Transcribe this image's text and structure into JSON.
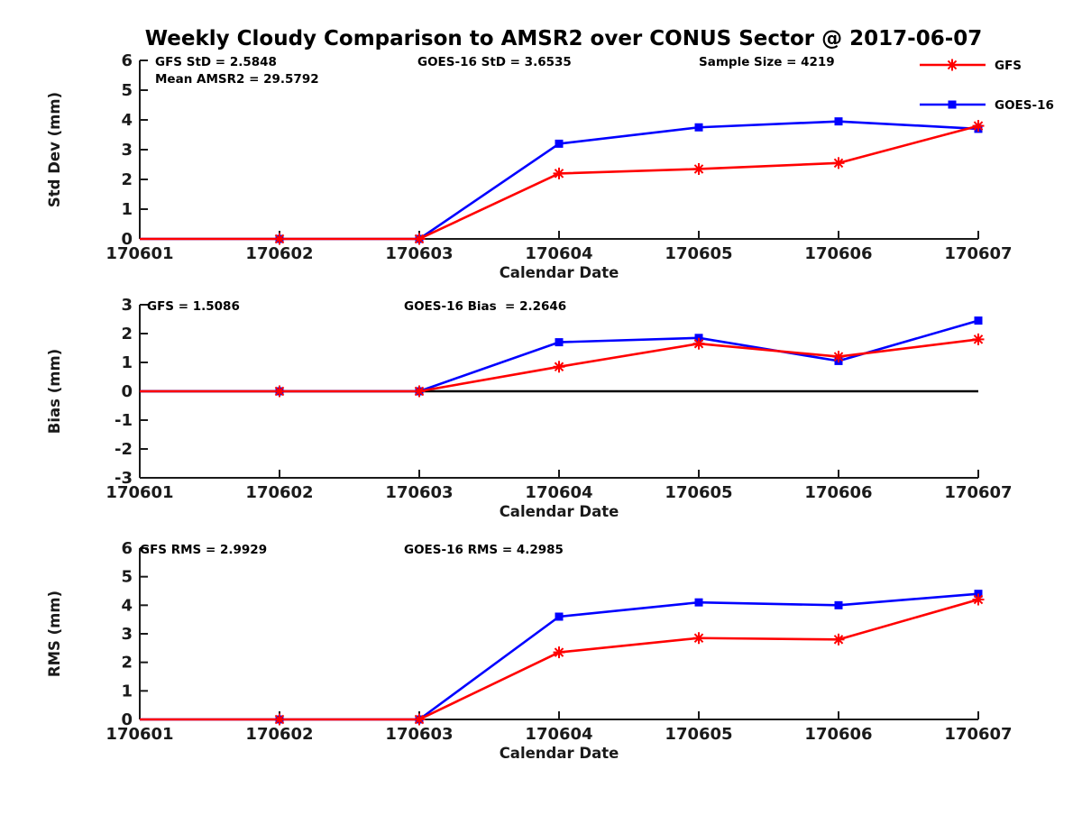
{
  "title": "Weekly Cloudy Comparison to AMSR2 over CONUS Sector @ 2017-06-07",
  "axis_color": "#1a1a1a",
  "legend": {
    "entries": [
      {
        "label": "GFS",
        "color": "#ff0000",
        "marker": "asterisk"
      },
      {
        "label": "GOES-16",
        "color": "#0000ff",
        "marker": "square"
      }
    ]
  },
  "chart_data": [
    {
      "type": "line",
      "name": "std-dev",
      "x": [
        "170601",
        "170602",
        "170603",
        "170604",
        "170605",
        "170606",
        "170607"
      ],
      "xlabel": "Calendar Date",
      "ylabel": "Std Dev (mm)",
      "ylim": [
        0,
        6
      ],
      "yticks": [
        0,
        1,
        2,
        3,
        4,
        5,
        6
      ],
      "zero_line": false,
      "series": [
        {
          "name": "GFS",
          "color": "#ff0000",
          "marker": "asterisk",
          "values": [
            0,
            0,
            0,
            2.2,
            2.35,
            2.55,
            3.8
          ]
        },
        {
          "name": "GOES-16",
          "color": "#0000ff",
          "marker": "square",
          "values": [
            0,
            0,
            0,
            3.2,
            3.75,
            3.95,
            3.7
          ]
        }
      ],
      "annotations": [
        {
          "text": "GFS StD = 2.5848",
          "x": 172,
          "y": 73
        },
        {
          "text": "Mean AMSR2 = 29.5792",
          "x": 172,
          "y": 92
        },
        {
          "text": "GOES-16 StD = 3.6535",
          "x": 463,
          "y": 73
        },
        {
          "text": "Sample Size = 4219",
          "x": 775,
          "y": 73
        }
      ]
    },
    {
      "type": "line",
      "name": "bias",
      "x": [
        "170601",
        "170602",
        "170603",
        "170604",
        "170605",
        "170606",
        "170607"
      ],
      "xlabel": "Calendar Date",
      "ylabel": "Bias (mm)",
      "ylim": [
        -3,
        3
      ],
      "yticks": [
        -3,
        -2,
        -1,
        0,
        1,
        2,
        3
      ],
      "zero_line": true,
      "series": [
        {
          "name": "GFS",
          "color": "#ff0000",
          "marker": "asterisk",
          "values": [
            0,
            0,
            0,
            0.85,
            1.65,
            1.2,
            1.8
          ]
        },
        {
          "name": "GOES-16",
          "color": "#0000ff",
          "marker": "square",
          "values": [
            0,
            0,
            0,
            1.7,
            1.85,
            1.05,
            2.45
          ]
        }
      ],
      "annotations": [
        {
          "text": "GFS = 1.5086",
          "x": 163,
          "y": 344
        },
        {
          "text": "GOES-16 Bias  = 2.2646",
          "x": 448,
          "y": 344
        }
      ]
    },
    {
      "type": "line",
      "name": "rms",
      "x": [
        "170601",
        "170602",
        "170603",
        "170604",
        "170605",
        "170606",
        "170607"
      ],
      "xlabel": "Calendar Date",
      "ylabel": "RMS (mm)",
      "ylim": [
        0,
        6
      ],
      "yticks": [
        0,
        1,
        2,
        3,
        4,
        5,
        6
      ],
      "zero_line": false,
      "series": [
        {
          "name": "GFS",
          "color": "#ff0000",
          "marker": "asterisk",
          "values": [
            0,
            0,
            0,
            2.35,
            2.85,
            2.8,
            4.2
          ]
        },
        {
          "name": "GOES-16",
          "color": "#0000ff",
          "marker": "square",
          "values": [
            0,
            0,
            0,
            3.6,
            4.1,
            4.0,
            4.4
          ]
        }
      ],
      "annotations": [
        {
          "text": "GFS RMS = 2.9929",
          "x": 155,
          "y": 614
        },
        {
          "text": "GOES-16 RMS = 4.2985",
          "x": 448,
          "y": 614
        }
      ]
    }
  ]
}
